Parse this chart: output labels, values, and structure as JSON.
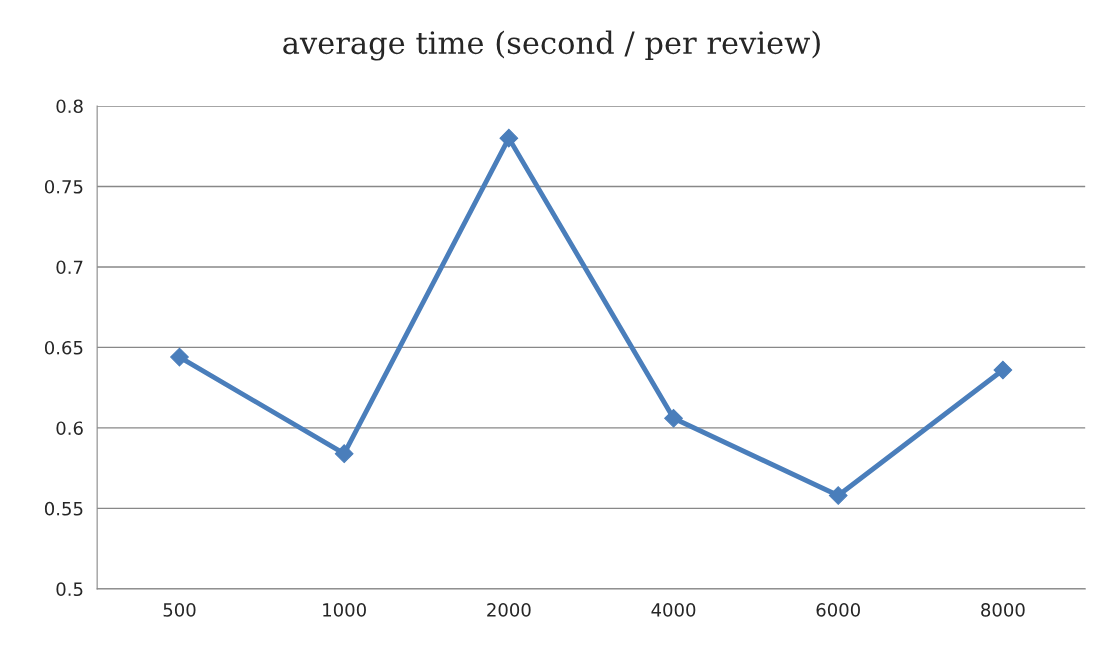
{
  "chart_data": {
    "type": "line",
    "title": "average time (second / per review)",
    "categories": [
      "500",
      "1000",
      "2000",
      "4000",
      "6000",
      "8000"
    ],
    "series": [
      {
        "color": "#4a7ebb",
        "values": [
          0.644,
          0.584,
          0.78,
          0.606,
          0.558,
          0.636
        ]
      }
    ],
    "ylim": [
      0.5,
      0.8
    ],
    "yticks": [
      0.5,
      0.55,
      0.6,
      0.65,
      0.7,
      0.75,
      0.8
    ],
    "grid": "y",
    "marker": "diamond",
    "line_style": "solid",
    "legend": false
  }
}
